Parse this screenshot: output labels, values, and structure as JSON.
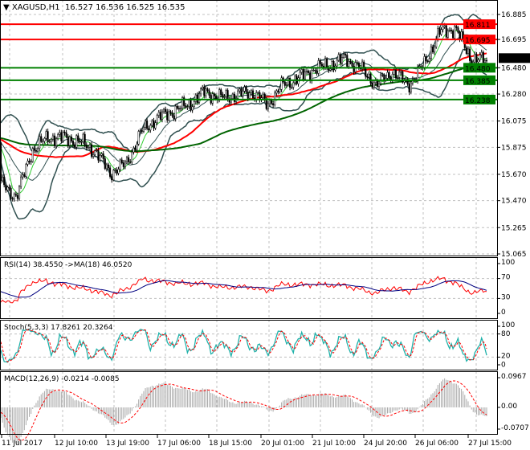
{
  "header": {
    "symbol": "XAGUSD,H1",
    "ohlc": "16.527 16.536 16.525 16.535"
  },
  "colors": {
    "bull": "#000000",
    "bear": "#000000",
    "resistance": "#ff0000",
    "support": "#008000",
    "bands": "#2f4f4f",
    "ma_fast": "#ff0000",
    "ma_slow": "#006400"
  },
  "chart_data": [
    {
      "type": "candlestick",
      "title": "XAGUSD,H1",
      "current_price": 16.535,
      "approx_close_path": [
        15.6,
        15.5,
        15.85,
        15.95,
        15.95,
        15.92,
        15.85,
        15.68,
        15.75,
        16.0,
        16.1,
        16.15,
        16.2,
        16.3,
        16.25,
        16.27,
        16.3,
        16.2,
        16.35,
        16.4,
        16.47,
        16.5,
        16.55,
        16.47,
        16.35,
        16.45,
        16.35,
        16.5,
        16.75,
        16.78,
        16.55,
        16.535
      ],
      "ylim": [
        15.065,
        16.885
      ],
      "y_ticks": [
        "16.885",
        "16.695",
        "16.480",
        "16.280",
        "16.075",
        "15.875",
        "15.670",
        "15.470",
        "15.265",
        "15.065"
      ],
      "x_ticks": [
        "11 Jul 2017",
        "12 Jul 10:00",
        "13 Jul 19:00",
        "17 Jul 06:00",
        "18 Jul 15:00",
        "20 Jul 01:00",
        "21 Jul 10:00",
        "24 Jul 20:00",
        "26 Jul 06:00",
        "27 Jul 15:00"
      ],
      "levels": [
        {
          "value": "16.811",
          "kind": "resistance"
        },
        {
          "value": "16.695",
          "kind": "resistance"
        },
        {
          "value": "16.480",
          "kind": "support"
        },
        {
          "value": "16.385",
          "kind": "support"
        },
        {
          "value": "16.238",
          "kind": "support"
        }
      ],
      "grid": true
    },
    {
      "type": "line",
      "label": "RSI(14) 38.4550  ->MA(18) 46.0520",
      "ylim": [
        0,
        100
      ],
      "y_ticks": [
        "100",
        "70",
        "30",
        "0"
      ]
    },
    {
      "type": "line",
      "label": "Stoch(5,3,3) 17.8261 20.3264",
      "ylim": [
        0,
        100
      ],
      "y_ticks": [
        "100",
        "80",
        "20",
        "0"
      ]
    },
    {
      "type": "bar",
      "label": "MACD(12,26,9) -0.0214 -0.0085",
      "ylim": [
        -0.0707,
        0.0967
      ],
      "y_ticks": [
        "0.0967",
        "0.00",
        "-0.0707"
      ]
    }
  ]
}
